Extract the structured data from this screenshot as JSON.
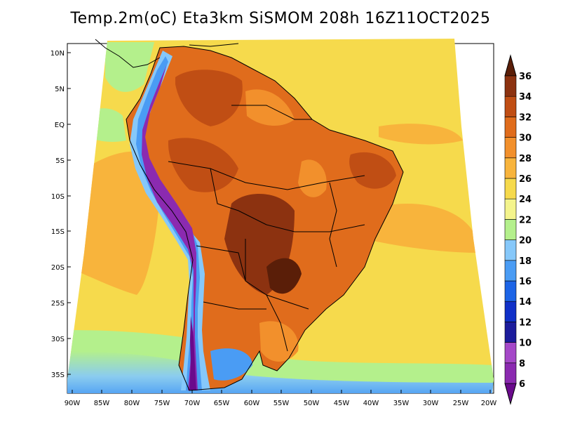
{
  "title": "Temp.2m(oC) Eta3km SiSMOM 208h 16Z11OCT2025",
  "y_ticks": [
    "10N",
    "5N",
    "EQ",
    "5S",
    "10S",
    "15S",
    "20S",
    "25S",
    "30S",
    "35S"
  ],
  "x_ticks": [
    "90W",
    "85W",
    "80W",
    "75W",
    "70W",
    "65W",
    "60W",
    "55W",
    "50W",
    "45W",
    "40W",
    "35W",
    "30W",
    "25W",
    "20W"
  ],
  "colorbar": {
    "levels": [
      "6",
      "8",
      "10",
      "12",
      "14",
      "16",
      "18",
      "20",
      "22",
      "24",
      "26",
      "28",
      "30",
      "32",
      "34",
      "36"
    ],
    "colors": [
      "#6a0a8c",
      "#8b2ab0",
      "#a548c8",
      "#1c1c9c",
      "#1030c8",
      "#1c64e6",
      "#4a9cf4",
      "#86c8fa",
      "#b4f08c",
      "#f4f48c",
      "#f6da4c",
      "#f8b43c",
      "#f2902c",
      "#e06c1c",
      "#c04e14",
      "#8c3210",
      "#5a1e08"
    ]
  },
  "map": {
    "domain": "South America",
    "lon_range": [
      -91,
      -20
    ],
    "lat_range": [
      -38,
      11
    ],
    "variable": "2 m air temperature (°C)"
  }
}
